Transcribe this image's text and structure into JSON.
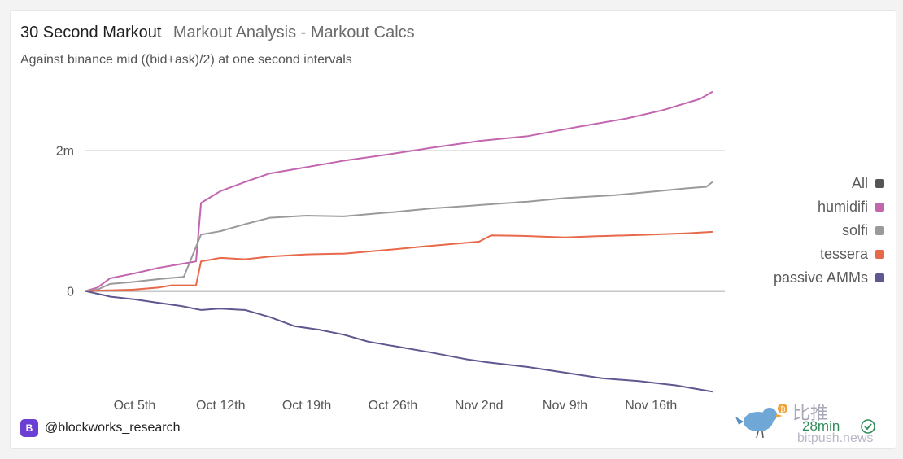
{
  "header": {
    "title": "30 Second Markout",
    "subtitle": "Markout Analysis - Markout Calcs",
    "description": "Against binance mid ((bid+ask)/2) at one second intervals"
  },
  "legend": {
    "items": [
      {
        "label": "All",
        "color": "#555555"
      },
      {
        "label": "humidifi",
        "color": "#c266b0"
      },
      {
        "label": "solfi",
        "color": "#9a9a9a"
      },
      {
        "label": "tessera",
        "color": "#e8684a"
      },
      {
        "label": "passive AMMs",
        "color": "#5e5890"
      }
    ]
  },
  "footer": {
    "handle": "@blockworks_research",
    "badge_icon": "blockworks-logo-icon"
  },
  "watermark": {
    "chinese": "比推",
    "time": "28min",
    "url": "bitpush.news"
  },
  "chart_data": {
    "type": "line",
    "x_tick_labels": [
      "Oct 5th",
      "Oct 12th",
      "Oct 19th",
      "Oct 26th",
      "Nov 2nd",
      "Nov 9th",
      "Nov 16th"
    ],
    "x_range": [
      "Oct 1",
      "Nov 22"
    ],
    "y_tick_labels": [
      "0",
      "2m"
    ],
    "ylim": [
      -1.45,
      2.85
    ],
    "grid": true,
    "legend_position": "right",
    "series": [
      {
        "name": "humidifi",
        "color": "#c266b0",
        "points": [
          [
            "Oct 1",
            0
          ],
          [
            "Oct 2",
            0.05
          ],
          [
            "Oct 3",
            0.18
          ],
          [
            "Oct 5",
            0.25
          ],
          [
            "Oct 7",
            0.33
          ],
          [
            "Oct 8",
            0.36
          ],
          [
            "Oct 10",
            0.42
          ],
          [
            "Oct 10.4",
            1.25
          ],
          [
            "Oct 12",
            1.42
          ],
          [
            "Oct 14",
            1.55
          ],
          [
            "Oct 16",
            1.67
          ],
          [
            "Oct 19",
            1.76
          ],
          [
            "Oct 22",
            1.85
          ],
          [
            "Oct 26",
            1.95
          ],
          [
            "Oct 29",
            2.03
          ],
          [
            "Nov 2",
            2.13
          ],
          [
            "Nov 6",
            2.2
          ],
          [
            "Nov 10",
            2.33
          ],
          [
            "Nov 14",
            2.45
          ],
          [
            "Nov 17",
            2.57
          ],
          [
            "Nov 20",
            2.73
          ],
          [
            "Nov 21",
            2.83
          ]
        ]
      },
      {
        "name": "solfi",
        "color": "#9a9a9a",
        "points": [
          [
            "Oct 1",
            0
          ],
          [
            "Oct 2",
            0.02
          ],
          [
            "Oct 3",
            0.1
          ],
          [
            "Oct 5",
            0.13
          ],
          [
            "Oct 7",
            0.17
          ],
          [
            "Oct 9",
            0.2
          ],
          [
            "Oct 10.4",
            0.8
          ],
          [
            "Oct 12",
            0.85
          ],
          [
            "Oct 14",
            0.95
          ],
          [
            "Oct 16",
            1.04
          ],
          [
            "Oct 19",
            1.07
          ],
          [
            "Oct 22",
            1.06
          ],
          [
            "Oct 26",
            1.12
          ],
          [
            "Oct 29",
            1.17
          ],
          [
            "Nov 2",
            1.22
          ],
          [
            "Nov 6",
            1.27
          ],
          [
            "Nov 9",
            1.32
          ],
          [
            "Nov 13",
            1.36
          ],
          [
            "Nov 16",
            1.41
          ],
          [
            "Nov 19",
            1.46
          ],
          [
            "Nov 20.5",
            1.48
          ],
          [
            "Nov 21",
            1.55
          ]
        ]
      },
      {
        "name": "tessera",
        "color": "#e8684a",
        "points": [
          [
            "Oct 1",
            0
          ],
          [
            "Oct 3",
            0.01
          ],
          [
            "Oct 5",
            0.02
          ],
          [
            "Oct 7",
            0.05
          ],
          [
            "Oct 8",
            0.08
          ],
          [
            "Oct 10",
            0.08
          ],
          [
            "Oct 10.4",
            0.42
          ],
          [
            "Oct 12",
            0.47
          ],
          [
            "Oct 14",
            0.45
          ],
          [
            "Oct 16",
            0.49
          ],
          [
            "Oct 19",
            0.52
          ],
          [
            "Oct 22",
            0.53
          ],
          [
            "Oct 24",
            0.56
          ],
          [
            "Oct 26",
            0.59
          ],
          [
            "Oct 29",
            0.64
          ],
          [
            "Nov 2",
            0.7
          ],
          [
            "Nov 3",
            0.79
          ],
          [
            "Nov 6",
            0.78
          ],
          [
            "Nov 9",
            0.76
          ],
          [
            "Nov 12",
            0.78
          ],
          [
            "Nov 16",
            0.8
          ],
          [
            "Nov 19",
            0.82
          ],
          [
            "Nov 21",
            0.84
          ]
        ]
      },
      {
        "name": "passive AMMs",
        "color": "#5e5890",
        "points": [
          [
            "Oct 1",
            0
          ],
          [
            "Oct 3",
            -0.08
          ],
          [
            "Oct 5",
            -0.12
          ],
          [
            "Oct 7",
            -0.17
          ],
          [
            "Oct 9",
            -0.22
          ],
          [
            "Oct 10.4",
            -0.27
          ],
          [
            "Oct 12",
            -0.25
          ],
          [
            "Oct 14",
            -0.27
          ],
          [
            "Oct 16",
            -0.37
          ],
          [
            "Oct 18",
            -0.5
          ],
          [
            "Oct 20",
            -0.55
          ],
          [
            "Oct 22",
            -0.62
          ],
          [
            "Oct 24",
            -0.72
          ],
          [
            "Oct 26",
            -0.78
          ],
          [
            "Oct 29",
            -0.87
          ],
          [
            "Nov 1",
            -0.97
          ],
          [
            "Nov 3",
            -1.02
          ],
          [
            "Nov 6",
            -1.08
          ],
          [
            "Nov 9",
            -1.16
          ],
          [
            "Nov 12",
            -1.24
          ],
          [
            "Nov 15",
            -1.28
          ],
          [
            "Nov 18",
            -1.34
          ],
          [
            "Nov 21",
            -1.43
          ]
        ]
      }
    ]
  }
}
